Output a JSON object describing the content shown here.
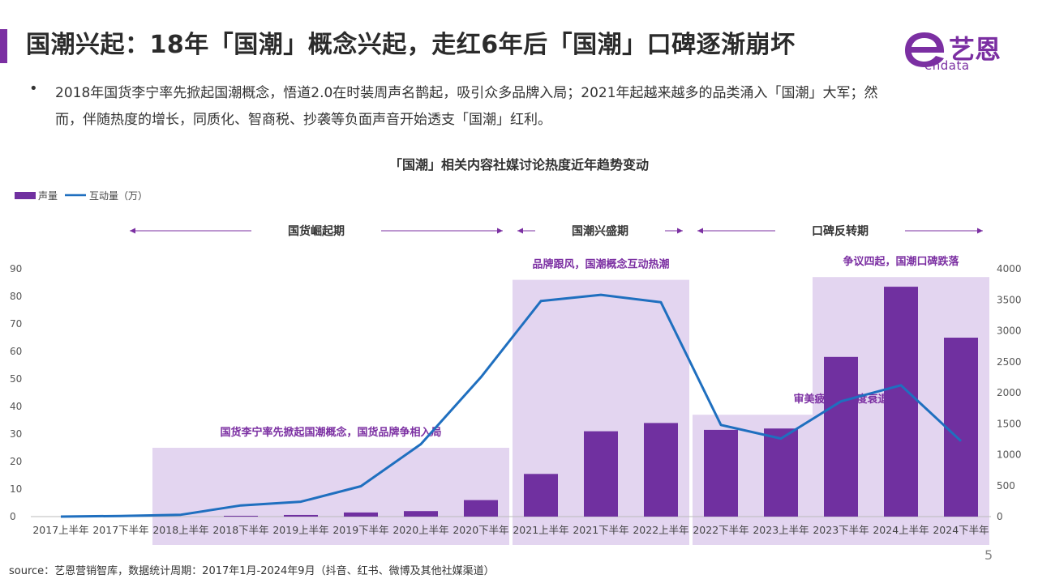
{
  "header": {
    "title": "国潮兴起：18年「国潮」概念兴起，走红6年后「国潮」口碑逐渐崩坏",
    "logo_cn": "艺恩",
    "logo_en": "endata"
  },
  "bullet": {
    "dot": "•",
    "text": "2018年国货李宁率先掀起国潮概念，悟道2.0在时装周声名鹊起，吸引众多品牌入局；2021年起越来越多的品类涌入「国潮」大军；然而，伴随热度的增长，同质化、智商税、抄袭等负面声音开始透支「国潮」红利。"
  },
  "colors": {
    "accent": "#7b2fa2",
    "bar": "#7030a0",
    "line": "#1f6fbf",
    "phase_bg": "#e3d5f0",
    "phase_text": "#7b2fa2"
  },
  "chart_data": {
    "type": "bar+line",
    "title": "「国潮」相关内容社媒讨论热度近年趋势变动",
    "categories": [
      "2017上半年",
      "2017下半年",
      "2018上半年",
      "2018下半年",
      "2019上半年",
      "2019下半年",
      "2020上半年",
      "2020下半年",
      "2021上半年",
      "2021下半年",
      "2022上半年",
      "2022下半年",
      "2023上半年",
      "2023下半年",
      "2024上半年",
      "2024下半年"
    ],
    "series": [
      {
        "name": "声量",
        "type": "bar",
        "axis": "left",
        "values": [
          0,
          0,
          0,
          0.3,
          0.6,
          1.5,
          2,
          6,
          15.5,
          31,
          34,
          31.5,
          32,
          58,
          83.5,
          65
        ]
      },
      {
        "name": "互动量（万）",
        "type": "line",
        "axis": "right",
        "values": [
          0,
          10,
          30,
          180,
          240,
          490,
          1170,
          2250,
          3480,
          3580,
          3460,
          1480,
          1260,
          1860,
          2120,
          1220
        ]
      }
    ],
    "y_left": {
      "min": 0,
      "max": 90,
      "ticks": [
        0,
        10,
        20,
        30,
        40,
        50,
        60,
        70,
        80,
        90
      ]
    },
    "y_right": {
      "min": 0,
      "max": 4000,
      "ticks": [
        0,
        500,
        1000,
        1500,
        2000,
        2500,
        3000,
        3500,
        4000
      ]
    },
    "grid": false,
    "legend": "top-left",
    "phases": [
      {
        "label": "国货崛起期",
        "from": 0,
        "to": 7,
        "highlight_from": 2,
        "note": "国货李宁率先掀起国潮概念，国货品牌争相入局",
        "box_value": 25
      },
      {
        "label": "国潮兴盛期",
        "from": 8,
        "to": 10,
        "highlight_from": 8,
        "note": "品牌跟风，国潮概念互动热潮",
        "box_value": 86
      },
      {
        "label": "口碑反转期",
        "from": 11,
        "to": 15,
        "highlight_from": 11,
        "note": "审美疲劳，热度衰退",
        "box_value": 37
      }
    ],
    "phase_boxes_extra": [
      {
        "note": "争议四起，国潮口碑跌落",
        "from": 13,
        "to": 15,
        "box_value": 87
      }
    ]
  },
  "footer": {
    "source": "source：艺恩营销智库，数据统计周期：2017年1月-2024年9月（抖音、红书、微博及其他社媒渠道）",
    "page": "5"
  }
}
